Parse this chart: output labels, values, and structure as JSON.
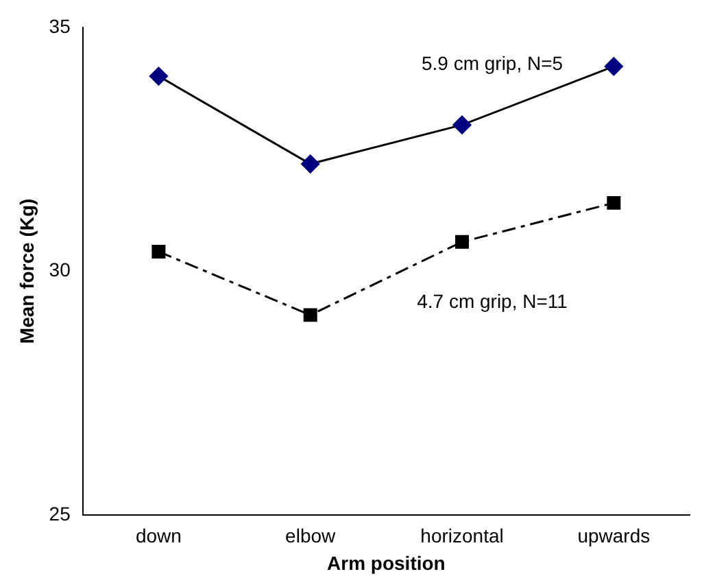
{
  "chart_data": {
    "type": "line",
    "xlabel": "Arm position",
    "ylabel": "Mean force (Kg)",
    "categories": [
      "down",
      "elbow",
      "horizontal",
      "upwards"
    ],
    "series": [
      {
        "name": "5.9 cm grip, N=5",
        "color": "#000080",
        "values": [
          34.0,
          32.2,
          33.0,
          34.2
        ],
        "marker": "diamond",
        "line_style": "solid"
      },
      {
        "name": "4.7 cm grip, N=11",
        "color": "#000000",
        "values": [
          30.4,
          29.1,
          30.6,
          31.4
        ],
        "marker": "square",
        "line_style": "dashed"
      }
    ],
    "ylim": [
      25,
      35
    ],
    "yticks": [
      25,
      30,
      35
    ],
    "grid": false,
    "legend": false
  }
}
